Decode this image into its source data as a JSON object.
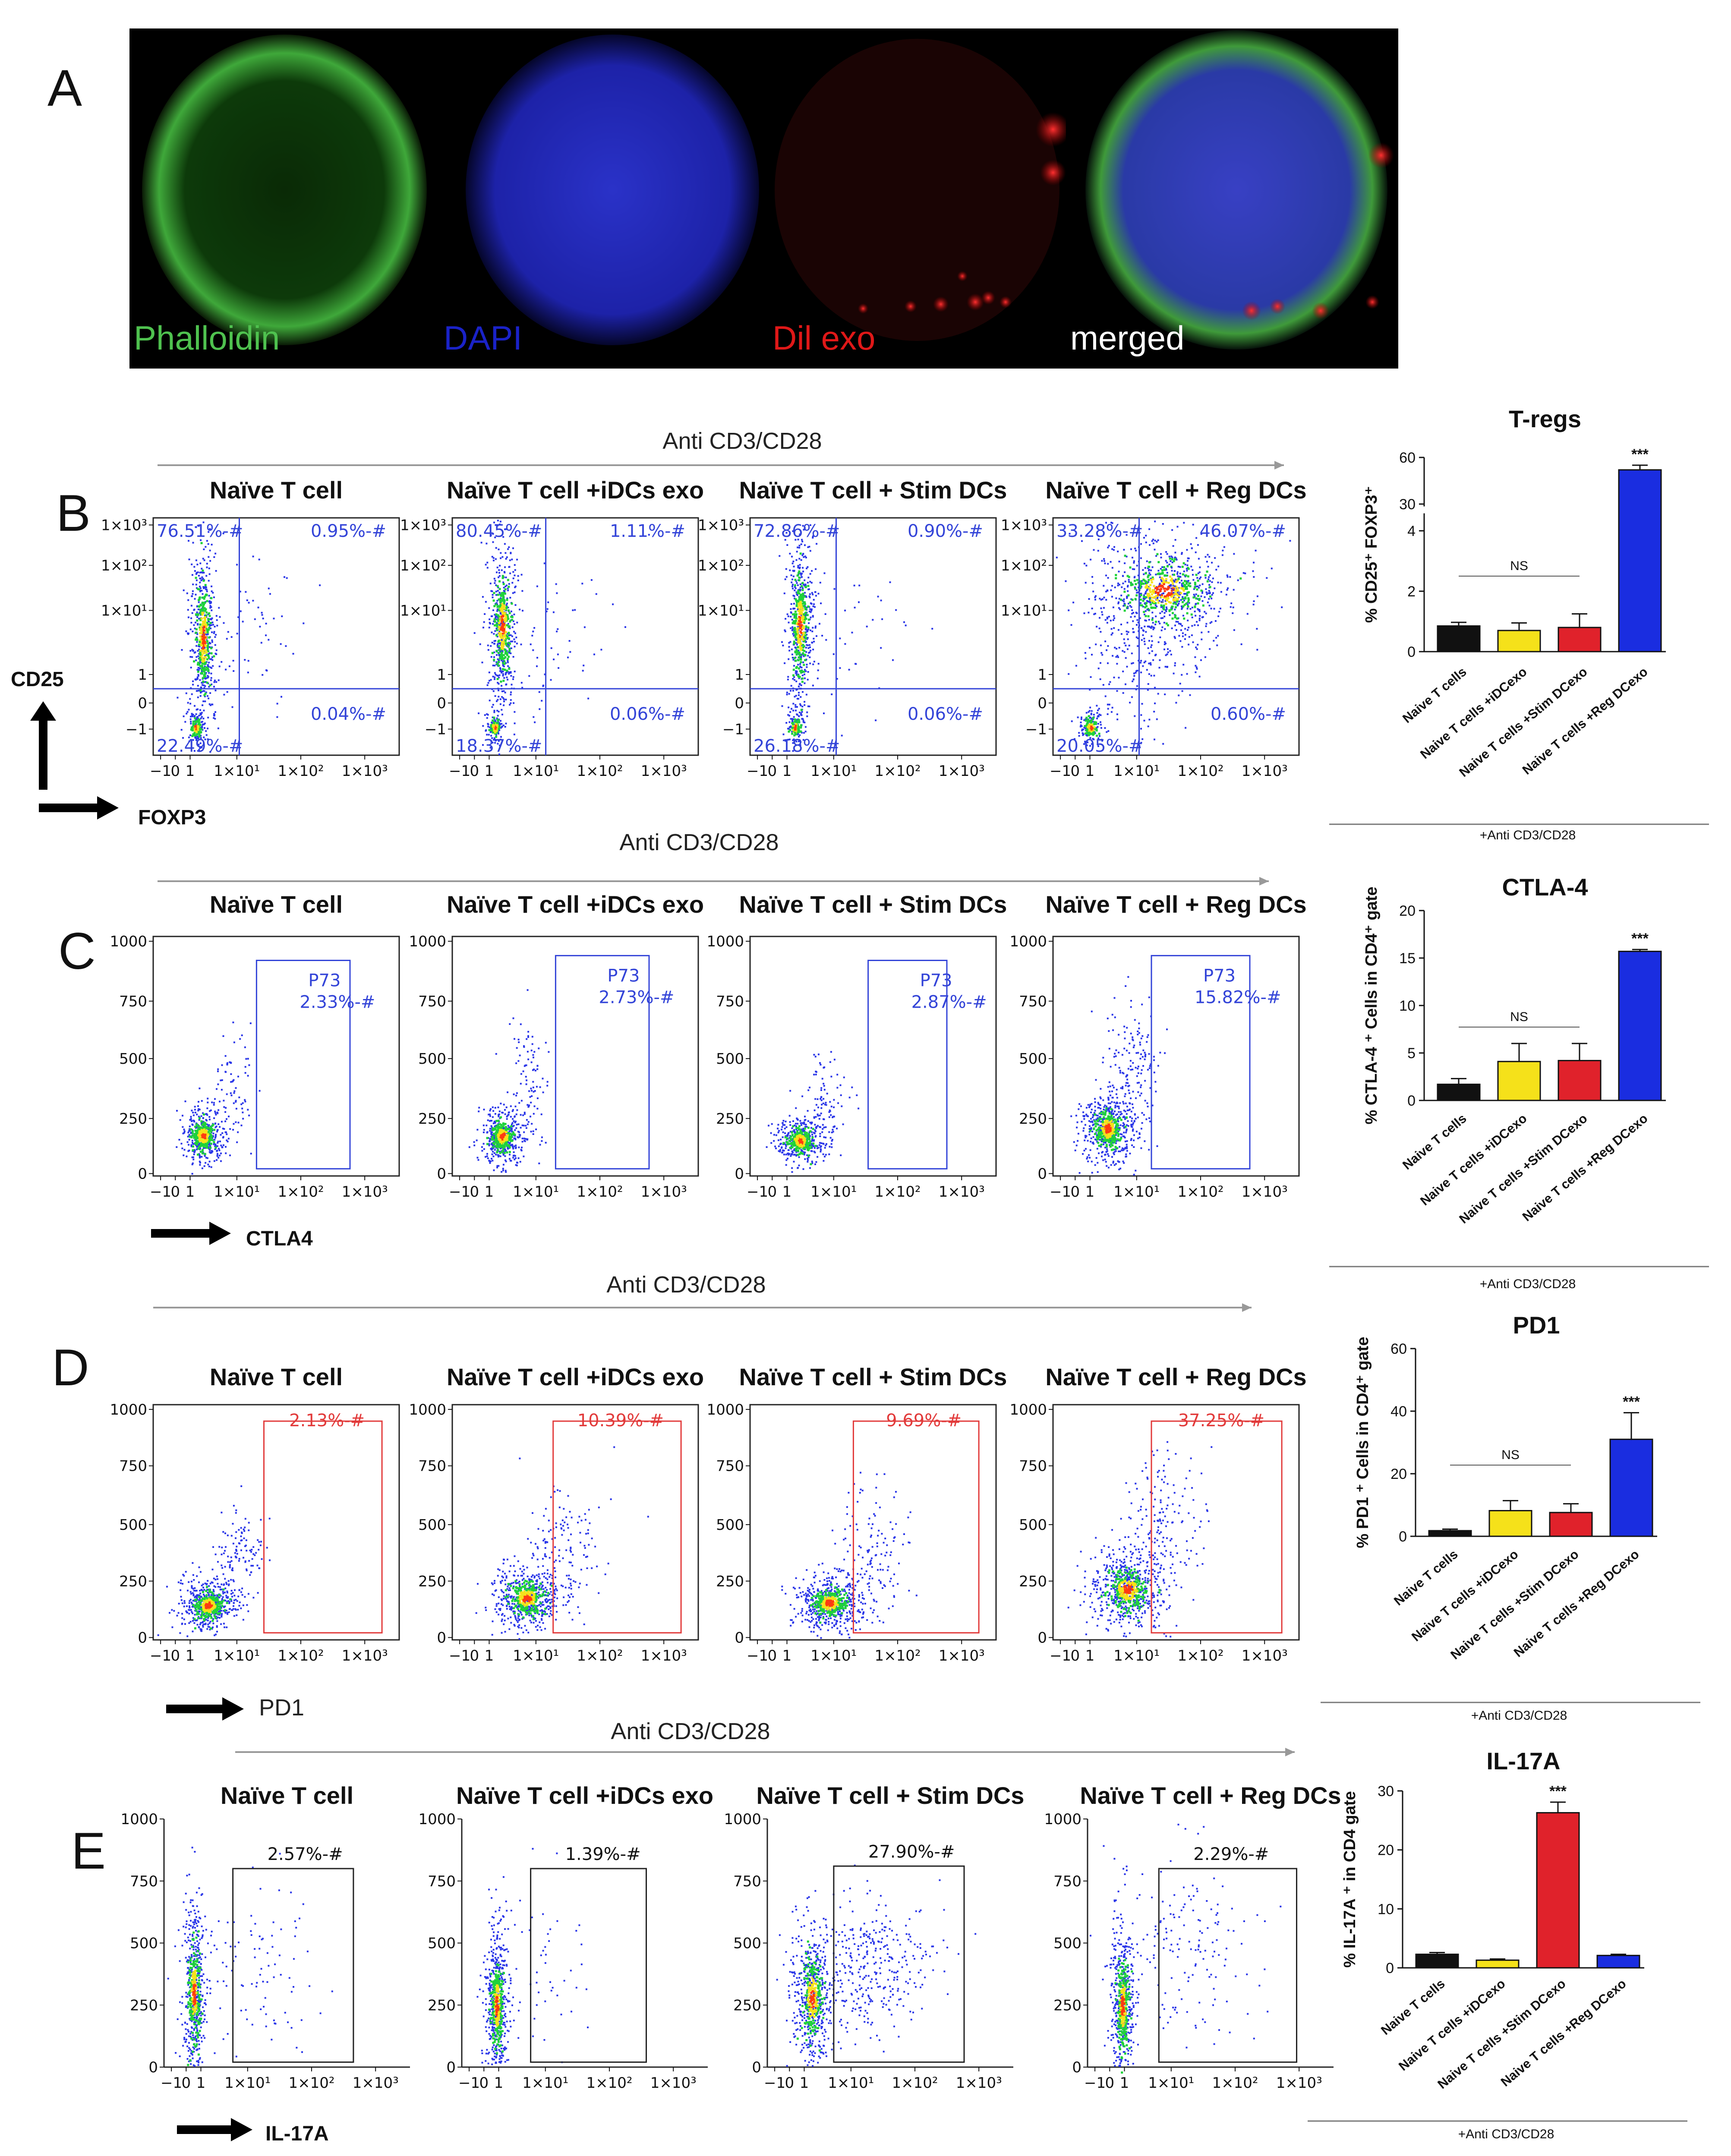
{
  "panel_a": {
    "letter": "A",
    "labels": [
      {
        "text": "Phalloidin",
        "color": "#4fc24f"
      },
      {
        "text": "DAPI",
        "color": "#1a22c8"
      },
      {
        "text": "Dil exo",
        "color": "#e01818"
      },
      {
        "text": "merged",
        "color": "#ffffff"
      }
    ]
  },
  "flow_titles": [
    "Naïve T cell",
    "Naïve T cell +iDCs exo",
    "Naïve T cell + Stim DCs",
    "Naïve T cell + Reg DCs"
  ],
  "stim_label": "Anti CD3/CD28",
  "x_ticks": [
    "−1",
    "0",
    "1",
    "1×10¹",
    "1×10²",
    "1×10³"
  ],
  "y_ticks_log": [
    "1×10³",
    "1×10²",
    "1×10¹",
    "1",
    "0",
    "−1"
  ],
  "y_ticks_lin": [
    "1000",
    "750",
    "500",
    "250",
    "0"
  ],
  "colors": {
    "blue_gate": "#3344d8",
    "red_gate": "#e23a3a",
    "black_gate": "#222222",
    "naive": "#111111",
    "idc": "#f5e11a",
    "stim": "#e0222b",
    "reg": "#1a2de0"
  },
  "panel_b": {
    "letter": "B",
    "y_axis": "CD25",
    "x_axis": "FOXP3",
    "quadrants": [
      {
        "ul": "76.51%-#",
        "ur": "0.95%-#",
        "lr": "0.04%-#",
        "ll": "22.49%-#"
      },
      {
        "ul": "80.45%-#",
        "ur": "1.11%-#",
        "lr": "0.06%-#",
        "ll": "18.37%-#"
      },
      {
        "ul": "72.86%-#",
        "ur": "0.90%-#",
        "lr": "0.06%-#",
        "ll": "26.18%-#"
      },
      {
        "ul": "33.28%-#",
        "ur": "46.07%-#",
        "lr": "0.60%-#",
        "ll": "20.05%-#"
      }
    ]
  },
  "panel_c": {
    "letter": "C",
    "x_axis": "CTLA4",
    "gates": [
      {
        "name": "P73",
        "pct": "2.33%-#"
      },
      {
        "name": "P73",
        "pct": "2.73%-#"
      },
      {
        "name": "P73",
        "pct": "2.87%-#"
      },
      {
        "name": "P73",
        "pct": "15.82%-#"
      }
    ]
  },
  "panel_d": {
    "letter": "D",
    "x_axis": "PD1",
    "gates": [
      "2.13%-#",
      "10.39%-#",
      "9.69%-#",
      "37.25%-#"
    ]
  },
  "panel_e": {
    "letter": "E",
    "x_axis": "IL-17A",
    "gates": [
      "2.57%-#",
      "1.39%-#",
      "27.90%-#",
      "2.29%-#"
    ]
  },
  "chart_data": [
    {
      "type": "bar",
      "title": "T-regs",
      "ylabel": "% CD25⁺ FOXP3⁺",
      "categories": [
        "Naive T cells",
        "Naive T cells +iDCexo",
        "Naive T cells +Stim DCexo",
        "Naive T cells +Reg DCexo"
      ],
      "values": [
        0.85,
        0.7,
        0.8,
        52
      ],
      "errors": [
        0.12,
        0.25,
        0.45,
        3
      ],
      "ylim": [
        0,
        60
      ],
      "axis_break": [
        4.5,
        30
      ],
      "yticks": [
        "0",
        "2",
        "4",
        "30",
        "60"
      ],
      "sig": "***",
      "ns": "NS",
      "footer": "+Anti CD3/CD28"
    },
    {
      "type": "bar",
      "title": "CTLA-4",
      "ylabel": "% CTLA-4 ⁺ Cells in CD4⁺ gate",
      "categories": [
        "Naive T cells",
        "Naive T cells +iDCexo",
        "Naive T cells +Stim DCexo",
        "Naive T cells +Reg DCexo"
      ],
      "values": [
        1.7,
        4.1,
        4.2,
        15.7
      ],
      "errors": [
        0.6,
        1.9,
        1.8,
        0.2
      ],
      "ylim": [
        0,
        20
      ],
      "yticks": [
        "0",
        "5",
        "10",
        "15",
        "20"
      ],
      "sig": "***",
      "ns": "NS",
      "footer": "+Anti CD3/CD28"
    },
    {
      "type": "bar",
      "title": "PD1",
      "ylabel": "% PD1 ⁺ Cells in CD4⁺ gate",
      "categories": [
        "Naive T cells",
        "Naive T cells +iDCexo",
        "Naive T cells +Stim DCexo",
        "Naive T cells +Reg DCexo"
      ],
      "values": [
        1.8,
        8.2,
        7.6,
        31
      ],
      "errors": [
        0.5,
        3.2,
        2.8,
        8.5
      ],
      "ylim": [
        0,
        60
      ],
      "yticks": [
        "0",
        "20",
        "40",
        "60"
      ],
      "sig": "***",
      "ns": "NS",
      "footer": "+Anti CD3/CD28"
    },
    {
      "type": "bar",
      "title": "IL-17A",
      "ylabel": "% IL-17A ⁺ in CD4 gate",
      "categories": [
        "Naive T cells",
        "Naive T cells +iDCexo",
        "Naive T cells +Stim DCexo",
        "Naive T cells +Reg DCexo"
      ],
      "values": [
        2.3,
        1.3,
        26.3,
        2.1
      ],
      "errors": [
        0.3,
        0.2,
        1.8,
        0.2
      ],
      "ylim": [
        0,
        30
      ],
      "yticks": [
        "0",
        "10",
        "20",
        "30"
      ],
      "sig": "***",
      "ns": "",
      "footer": "+Anti CD3/CD28"
    }
  ]
}
